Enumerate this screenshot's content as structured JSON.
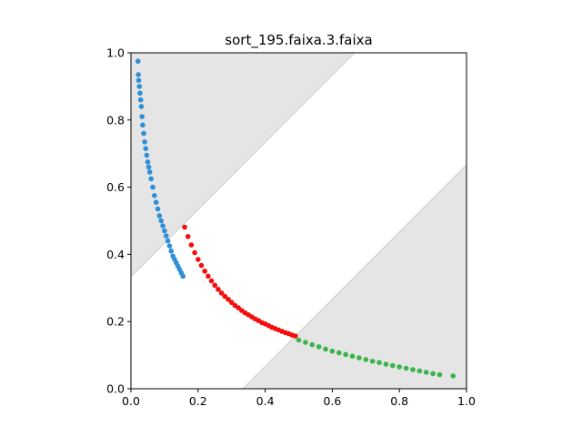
{
  "chart_data": {
    "type": "scatter",
    "title": "sort_195.faixa.3.faixa",
    "xlabel": "",
    "ylabel": "",
    "xlim": [
      0.0,
      1.0
    ],
    "ylim": [
      0.0,
      1.0
    ],
    "grid": false,
    "x_ticks": [
      "0.0",
      "0.2",
      "0.4",
      "0.6",
      "0.8",
      "1.0"
    ],
    "y_ticks": [
      "0.0",
      "0.2",
      "0.4",
      "0.6",
      "0.8",
      "1.0"
    ],
    "tick_values": [
      0.0,
      0.2,
      0.4,
      0.6,
      0.8,
      1.0
    ],
    "shaded_bands": [
      {
        "description": "upper-left region above line y = x + 1/3",
        "line": {
          "slope": 1,
          "intercept": 0.3333
        },
        "side": "above",
        "color": "#e5e5e5"
      },
      {
        "description": "lower-right region below line y = x - 1/3",
        "line": {
          "slope": 1,
          "intercept": -0.3333
        },
        "side": "below",
        "color": "#e5e5e5"
      }
    ],
    "curve": {
      "equation": "y = 0.077 / x"
    },
    "series": [
      {
        "color": "#2e8fd8",
        "x": [
          0.021,
          0.022,
          0.023,
          0.025,
          0.027,
          0.029,
          0.031,
          0.033,
          0.035,
          0.038,
          0.041,
          0.044,
          0.047,
          0.05,
          0.053,
          0.056,
          0.06,
          0.065,
          0.07,
          0.075,
          0.08,
          0.085,
          0.09,
          0.095,
          0.1,
          0.105,
          0.11,
          0.115,
          0.12,
          0.125,
          0.13,
          0.135,
          0.14,
          0.145,
          0.15,
          0.155
        ],
        "y": [
          0.975,
          0.935,
          0.918,
          0.9,
          0.88,
          0.86,
          0.84,
          0.81,
          0.785,
          0.76,
          0.735,
          0.715,
          0.695,
          0.675,
          0.66,
          0.645,
          0.625,
          0.6,
          0.575,
          0.555,
          0.535,
          0.515,
          0.5,
          0.485,
          0.47,
          0.455,
          0.44,
          0.425,
          0.41,
          0.395,
          0.385,
          0.375,
          0.365,
          0.355,
          0.345,
          0.335
        ]
      },
      {
        "color": "#f50d0d",
        "x": [
          0.16,
          0.17,
          0.18,
          0.19,
          0.2,
          0.21,
          0.22,
          0.23,
          0.24,
          0.25,
          0.26,
          0.27,
          0.28,
          0.29,
          0.3,
          0.31,
          0.32,
          0.33,
          0.34,
          0.35,
          0.36,
          0.37,
          0.38,
          0.39,
          0.4,
          0.41,
          0.42,
          0.43,
          0.44,
          0.45,
          0.46,
          0.47,
          0.48,
          0.49
        ],
        "y": [
          0.481,
          0.453,
          0.428,
          0.405,
          0.385,
          0.367,
          0.35,
          0.335,
          0.321,
          0.308,
          0.296,
          0.285,
          0.275,
          0.266,
          0.257,
          0.248,
          0.241,
          0.233,
          0.226,
          0.22,
          0.214,
          0.208,
          0.203,
          0.197,
          0.193,
          0.188,
          0.183,
          0.179,
          0.175,
          0.171,
          0.167,
          0.164,
          0.16,
          0.157
        ]
      },
      {
        "color": "#3cb44b",
        "x": [
          0.5,
          0.52,
          0.54,
          0.56,
          0.58,
          0.6,
          0.62,
          0.64,
          0.66,
          0.68,
          0.7,
          0.72,
          0.74,
          0.76,
          0.78,
          0.8,
          0.82,
          0.84,
          0.86,
          0.88,
          0.9,
          0.92,
          0.96
        ],
        "y": [
          0.145,
          0.138,
          0.131,
          0.125,
          0.118,
          0.112,
          0.107,
          0.102,
          0.097,
          0.092,
          0.087,
          0.082,
          0.078,
          0.073,
          0.069,
          0.065,
          0.061,
          0.057,
          0.053,
          0.049,
          0.045,
          0.042,
          0.038
        ]
      }
    ]
  }
}
